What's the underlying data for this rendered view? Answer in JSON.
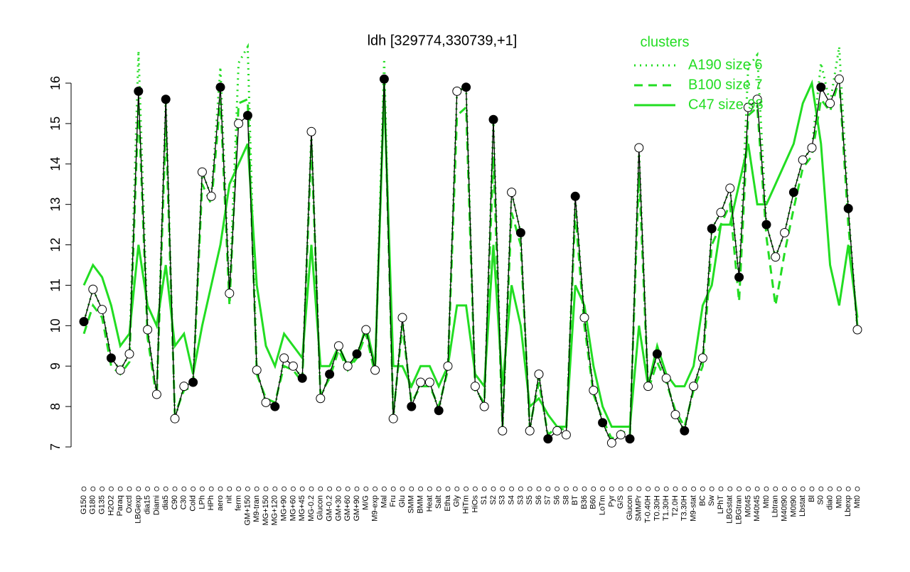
{
  "chart_data": {
    "type": "line",
    "title": "ldh [329774,330739,+1]",
    "legend_title": "clusters",
    "legend": "top-right",
    "categories": [
      "G150",
      "G180",
      "G135",
      "H2O2",
      "Paraq",
      "Oxctl",
      "LBGexp",
      "dia15",
      "Diami",
      "dia5",
      "C90",
      "C30",
      "Cold",
      "LPh",
      "HPh",
      "aero",
      "nit",
      "ferm",
      "GM+150",
      "M9-tran",
      "MG+150",
      "MG+120",
      "MG+90",
      "MG+60",
      "MG+45",
      "MG-0.2",
      "Glucon",
      "GM-0.2",
      "GM+30",
      "GM+60",
      "GM+90",
      "M/G",
      "M9-exp",
      "Mal",
      "Fru",
      "Glu",
      "SMM",
      "BMM",
      "Heat",
      "Salt",
      "Etha",
      "Gly",
      "HiTm",
      "HiOs",
      "S1",
      "S2",
      "S3",
      "S4",
      "S3",
      "S5",
      "S6",
      "S7",
      "S6",
      "S8",
      "BT",
      "B36",
      "B60",
      "LoTm",
      "Pyr",
      "G/S",
      "Glucon",
      "SMMPr",
      "T-0.40H",
      "T0.30H",
      "T1.30H",
      "T2.0H",
      "T3.30H",
      "M9-stat",
      "BC",
      "Sw",
      "LPhT",
      "LBGstat",
      "LBGtran",
      "M0t45",
      "M40t45",
      "Mt0",
      "Lbtran",
      "M40t90",
      "M0t90",
      "Lbstat",
      "Bl",
      "S0",
      "dia0",
      "Mt0",
      "Lbexp",
      "Mt0"
    ],
    "series": [
      {
        "name": "A190 size 6",
        "color": "#22dd22",
        "style": "dotted",
        "values": [
          10.1,
          10.9,
          10.4,
          9.2,
          8.9,
          9.3,
          16.8,
          9.9,
          8.3,
          15.6,
          7.7,
          8.5,
          8.6,
          13.8,
          13.2,
          16.4,
          10.8,
          16.5,
          16.9,
          8.9,
          8.1,
          8.0,
          9.2,
          9.0,
          8.7,
          14.8,
          8.2,
          8.8,
          9.5,
          9.0,
          9.3,
          9.9,
          8.9,
          16.6,
          7.7,
          10.2,
          8.0,
          8.6,
          8.6,
          7.9,
          9.0,
          15.8,
          15.9,
          8.5,
          8.0,
          15.1,
          7.4,
          13.3,
          12.3,
          7.4,
          8.8,
          7.2,
          7.4,
          7.3,
          13.2,
          10.2,
          8.4,
          7.6,
          7.1,
          7.3,
          7.2,
          14.4,
          8.5,
          9.3,
          8.7,
          7.8,
          7.4,
          8.5,
          9.2,
          12.4,
          12.8,
          13.4,
          11.2,
          16.4,
          16.7,
          12.5,
          11.7,
          12.3,
          13.3,
          14.1,
          14.4,
          16.5,
          15.5,
          16.9,
          12.9,
          9.9
        ]
      },
      {
        "name": "B100 size 7",
        "color": "#22dd22",
        "style": "dashed",
        "values": [
          9.8,
          10.5,
          10.2,
          9.0,
          8.8,
          9.1,
          15.5,
          9.7,
          8.2,
          15.0,
          7.8,
          8.4,
          8.5,
          13.5,
          13.0,
          15.6,
          10.5,
          15.5,
          15.6,
          8.8,
          8.2,
          8.1,
          9.0,
          8.9,
          8.6,
          14.5,
          8.3,
          8.7,
          9.4,
          8.9,
          9.2,
          9.8,
          8.8,
          16.0,
          7.8,
          10.0,
          8.1,
          8.5,
          8.5,
          8.0,
          8.9,
          15.2,
          15.4,
          8.4,
          8.1,
          14.2,
          7.5,
          12.8,
          12.0,
          7.5,
          8.6,
          7.3,
          7.5,
          7.4,
          12.8,
          10.0,
          8.3,
          7.7,
          7.2,
          7.4,
          7.3,
          13.8,
          8.4,
          9.1,
          8.6,
          7.9,
          7.5,
          8.4,
          9.0,
          12.0,
          12.5,
          13.0,
          10.6,
          15.2,
          15.4,
          12.2,
          10.5,
          11.8,
          12.9,
          13.9,
          14.2,
          15.6,
          15.3,
          16.1,
          12.5,
          10.0
        ]
      },
      {
        "name": "C47 size 98",
        "color": "#22dd22",
        "style": "solid",
        "values": [
          11.0,
          11.5,
          11.2,
          10.5,
          9.5,
          9.8,
          12.0,
          10.5,
          10.0,
          11.5,
          9.5,
          9.8,
          8.8,
          10.0,
          11.0,
          12.0,
          13.5,
          14.0,
          14.5,
          11.0,
          9.5,
          9.0,
          9.8,
          9.5,
          9.2,
          12.0,
          9.0,
          9.0,
          9.5,
          9.0,
          9.2,
          10.0,
          9.0,
          15.8,
          9.0,
          9.0,
          8.5,
          9.0,
          9.0,
          8.5,
          9.0,
          10.5,
          10.5,
          8.8,
          8.5,
          12.0,
          8.5,
          11.0,
          10.0,
          8.0,
          8.2,
          7.8,
          7.5,
          7.5,
          11.0,
          10.5,
          9.0,
          8.0,
          7.5,
          7.5,
          7.5,
          10.0,
          8.5,
          9.5,
          8.8,
          8.5,
          8.5,
          9.0,
          10.5,
          11.0,
          12.5,
          12.5,
          13.5,
          14.5,
          13.0,
          13.0,
          13.5,
          14.0,
          14.5,
          15.5,
          16.0,
          14.5,
          11.5,
          10.5,
          12.0,
          10.2
        ]
      },
      {
        "name": "ldh",
        "color": "#000000",
        "style": "points",
        "values": [
          10.1,
          10.9,
          10.4,
          9.2,
          8.9,
          9.3,
          15.8,
          9.9,
          8.3,
          15.6,
          7.7,
          8.5,
          8.6,
          13.8,
          13.2,
          15.9,
          10.8,
          15.0,
          15.2,
          8.9,
          8.1,
          8.0,
          9.2,
          9.0,
          8.7,
          14.8,
          8.2,
          8.8,
          9.5,
          9.0,
          9.3,
          9.9,
          8.9,
          16.1,
          7.7,
          10.2,
          8.0,
          8.6,
          8.6,
          7.9,
          9.0,
          15.8,
          15.9,
          8.5,
          8.0,
          15.1,
          7.4,
          13.3,
          12.3,
          7.4,
          8.8,
          7.2,
          7.4,
          7.3,
          13.2,
          10.2,
          8.4,
          7.6,
          7.1,
          7.3,
          7.2,
          14.4,
          8.5,
          9.3,
          8.7,
          7.8,
          7.4,
          8.5,
          9.2,
          12.4,
          12.8,
          13.4,
          11.2,
          15.4,
          15.6,
          12.5,
          11.7,
          12.3,
          13.3,
          14.1,
          14.4,
          15.9,
          15.5,
          16.1,
          12.9,
          9.9
        ]
      }
    ],
    "ylim": [
      7,
      16
    ],
    "yticks": [
      7,
      8,
      9,
      10,
      11,
      12,
      13,
      14,
      15,
      16
    ]
  }
}
